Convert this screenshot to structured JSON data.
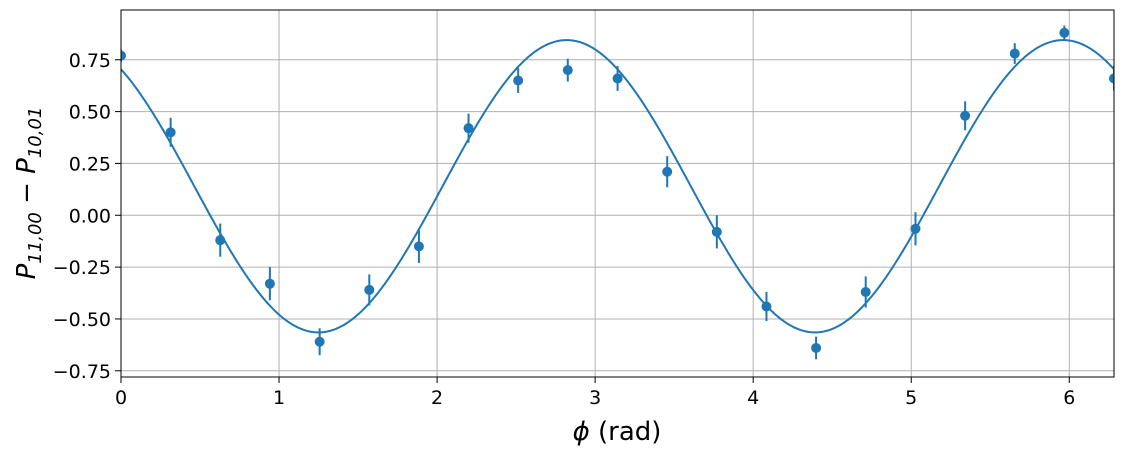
{
  "chart_data": {
    "type": "scatter",
    "xlabel_symbol": "ϕ",
    "xlabel_unit": " (rad)",
    "ylabel": {
      "p1": "P",
      "s1": "11,00",
      "minus": " − ",
      "p2": "P",
      "s2": "10,01"
    },
    "xlim": [
      0,
      6.283
    ],
    "ylim": [
      -0.78,
      0.99
    ],
    "x_ticks": [
      0,
      1,
      2,
      3,
      4,
      5,
      6
    ],
    "x_tick_labels": [
      "0",
      "1",
      "2",
      "3",
      "4",
      "5",
      "6"
    ],
    "y_ticks": [
      -0.75,
      -0.5,
      -0.25,
      0.0,
      0.25,
      0.5,
      0.75
    ],
    "y_tick_labels": [
      "−0.75",
      "−0.50",
      "−0.25",
      "0.00",
      "0.25",
      "0.50",
      "0.75"
    ],
    "grid": true,
    "color": "#1f77b4",
    "fit_curve": {
      "description_formula": "y = 0.14 + 0.705*cos(2*(x - 2.82))",
      "offset": 0.14,
      "amplitude": 0.705,
      "frequency": 2,
      "phase": 2.82
    },
    "points": [
      {
        "x": 0.0,
        "y": 0.77,
        "err": 0.03
      },
      {
        "x": 0.314,
        "y": 0.4,
        "err": 0.07
      },
      {
        "x": 0.628,
        "y": -0.12,
        "err": 0.08
      },
      {
        "x": 0.942,
        "y": -0.33,
        "err": 0.08
      },
      {
        "x": 1.257,
        "y": -0.61,
        "err": 0.065
      },
      {
        "x": 1.571,
        "y": -0.36,
        "err": 0.075
      },
      {
        "x": 1.885,
        "y": -0.15,
        "err": 0.08
      },
      {
        "x": 2.199,
        "y": 0.42,
        "err": 0.07
      },
      {
        "x": 2.513,
        "y": 0.65,
        "err": 0.06
      },
      {
        "x": 2.827,
        "y": 0.7,
        "err": 0.055
      },
      {
        "x": 3.142,
        "y": 0.66,
        "err": 0.06
      },
      {
        "x": 3.456,
        "y": 0.21,
        "err": 0.075
      },
      {
        "x": 3.77,
        "y": -0.08,
        "err": 0.08
      },
      {
        "x": 4.084,
        "y": -0.44,
        "err": 0.07
      },
      {
        "x": 4.398,
        "y": -0.64,
        "err": 0.055
      },
      {
        "x": 4.712,
        "y": -0.37,
        "err": 0.075
      },
      {
        "x": 5.027,
        "y": -0.065,
        "err": 0.08
      },
      {
        "x": 5.341,
        "y": 0.48,
        "err": 0.07
      },
      {
        "x": 5.655,
        "y": 0.78,
        "err": 0.05
      },
      {
        "x": 5.969,
        "y": 0.88,
        "err": 0.035
      },
      {
        "x": 6.283,
        "y": 0.66,
        "err": 0.06
      }
    ]
  }
}
